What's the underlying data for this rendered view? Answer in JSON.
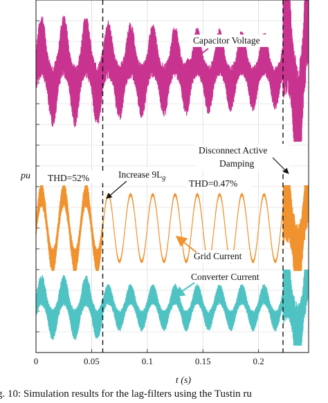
{
  "caption": "g. 10: Simulation results for the lag-filters using the Tustin ru",
  "chart_data": {
    "type": "line",
    "xlabel": "t (s)",
    "ylabel": "pu",
    "xlim": [
      0,
      0.245
    ],
    "x_ticks": [
      0,
      0.05,
      0.1,
      0.15,
      0.2
    ],
    "x_tick_labels": [
      "0",
      "0.05",
      "0.1",
      "0.15",
      "0.2"
    ],
    "y_tick_labels_shown": false,
    "grid": true,
    "frequency_hz": 50,
    "series": [
      {
        "name": "Capacitor Voltage",
        "color": "#c8338f",
        "rel_band": [
          0.0,
          1.0
        ],
        "segments": [
          {
            "t": [
              0,
              0.06
            ],
            "amplitude": 0.35,
            "ripple": 0.45
          },
          {
            "t": [
              0.06,
              0.222
            ],
            "amplitude_start": 0.3,
            "amplitude_end": 0.24,
            "ripple_start": 0.42,
            "ripple_end": 0.3
          },
          {
            "t": [
              0.222,
              0.245
            ],
            "state": "unstable"
          }
        ]
      },
      {
        "name": "Grid Current",
        "color": "#f0922e",
        "rel_band": [
          0.0,
          1.0
        ],
        "segments": [
          {
            "t": [
              0,
              0.06
            ],
            "amplitude": 0.78,
            "ripple": 0.3
          },
          {
            "t": [
              0.06,
              0.222
            ],
            "amplitude": 0.78,
            "ripple": 0.04
          },
          {
            "t": [
              0.222,
              0.245
            ],
            "state": "unstable"
          }
        ]
      },
      {
        "name": "Converter Current",
        "color": "#4fc3c3",
        "rel_band": [
          0.0,
          1.0
        ],
        "segments": [
          {
            "t": [
              0,
              0.06
            ],
            "amplitude": 0.45,
            "ripple": 0.42
          },
          {
            "t": [
              0.06,
              0.222
            ],
            "amplitude": 0.35,
            "ripple": 0.28
          },
          {
            "t": [
              0.222,
              0.245
            ],
            "state": "unstable"
          }
        ]
      }
    ],
    "events": [
      {
        "t": 0.06,
        "label": "Increase 9L",
        "label_sub": "g"
      },
      {
        "t": 0.222,
        "label": "Disconnect Active",
        "label_line2": "Damping"
      }
    ],
    "annotations": [
      {
        "text": "Capacitor Voltage",
        "arrow_to_series": "Capacitor Voltage"
      },
      {
        "text": "Grid Current",
        "arrow_to_series": "Grid Current"
      },
      {
        "text": "Converter Current",
        "arrow_to_series": "Converter Current"
      },
      {
        "text": "THD=52%"
      },
      {
        "text": "THD=0.47%"
      }
    ]
  }
}
